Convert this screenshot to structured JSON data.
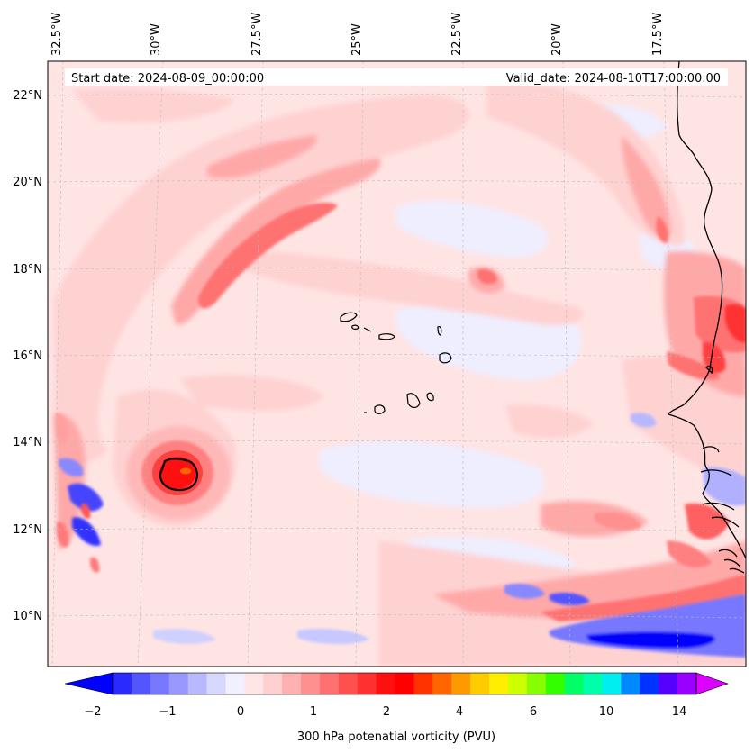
{
  "header": {
    "start_date": "Start date: 2024-08-09_00:00:00",
    "valid_date": "Valid_date: 2024-08-10T17:00:00.00"
  },
  "map": {
    "variable": "300 hPa potential vorticity",
    "lon_labels": [
      "32.5°W",
      "30°W",
      "27.5°W",
      "25°W",
      "22.5°W",
      "20°W",
      "17.5°W"
    ],
    "lat_labels": [
      "22°N",
      "20°N",
      "18°N",
      "16°N",
      "14°N",
      "12°N",
      "10°N"
    ],
    "extent": {
      "lon_min_w": 32.5,
      "lon_max_w": 15.5,
      "lat_min_n": 9.0,
      "lat_max_n": 22.5
    },
    "features": {
      "vortex_center": {
        "lon": "29.5°W",
        "lat": "13.3°N"
      },
      "coastline": "West Africa (Senegal / Gambia / Guinea-Bissau)",
      "islands": "Cabo Verde"
    }
  },
  "colorbar": {
    "title": "300 hPa potenatial vorticity (PVU)",
    "tick_labels": [
      "−2",
      "−1",
      "0",
      "1",
      "2",
      "4",
      "6",
      "10",
      "14"
    ],
    "colors": [
      "#0000ff",
      "#2a2aff",
      "#5555ff",
      "#7777ff",
      "#9898ff",
      "#b8b8ff",
      "#d8d8ff",
      "#f0f0ff",
      "#ffe6e6",
      "#ffd0d0",
      "#ffb0b0",
      "#ff9090",
      "#ff7070",
      "#ff5050",
      "#ff3030",
      "#ff1010",
      "#ff0000",
      "#ff3300",
      "#ff6600",
      "#ff9900",
      "#ffcc00",
      "#ffee00",
      "#ccff00",
      "#88ff00",
      "#33ff00",
      "#00ff66",
      "#00ffaa",
      "#00eeee",
      "#0088ff",
      "#0033ff",
      "#5500ff",
      "#9900ff",
      "#dd00ff"
    ]
  }
}
